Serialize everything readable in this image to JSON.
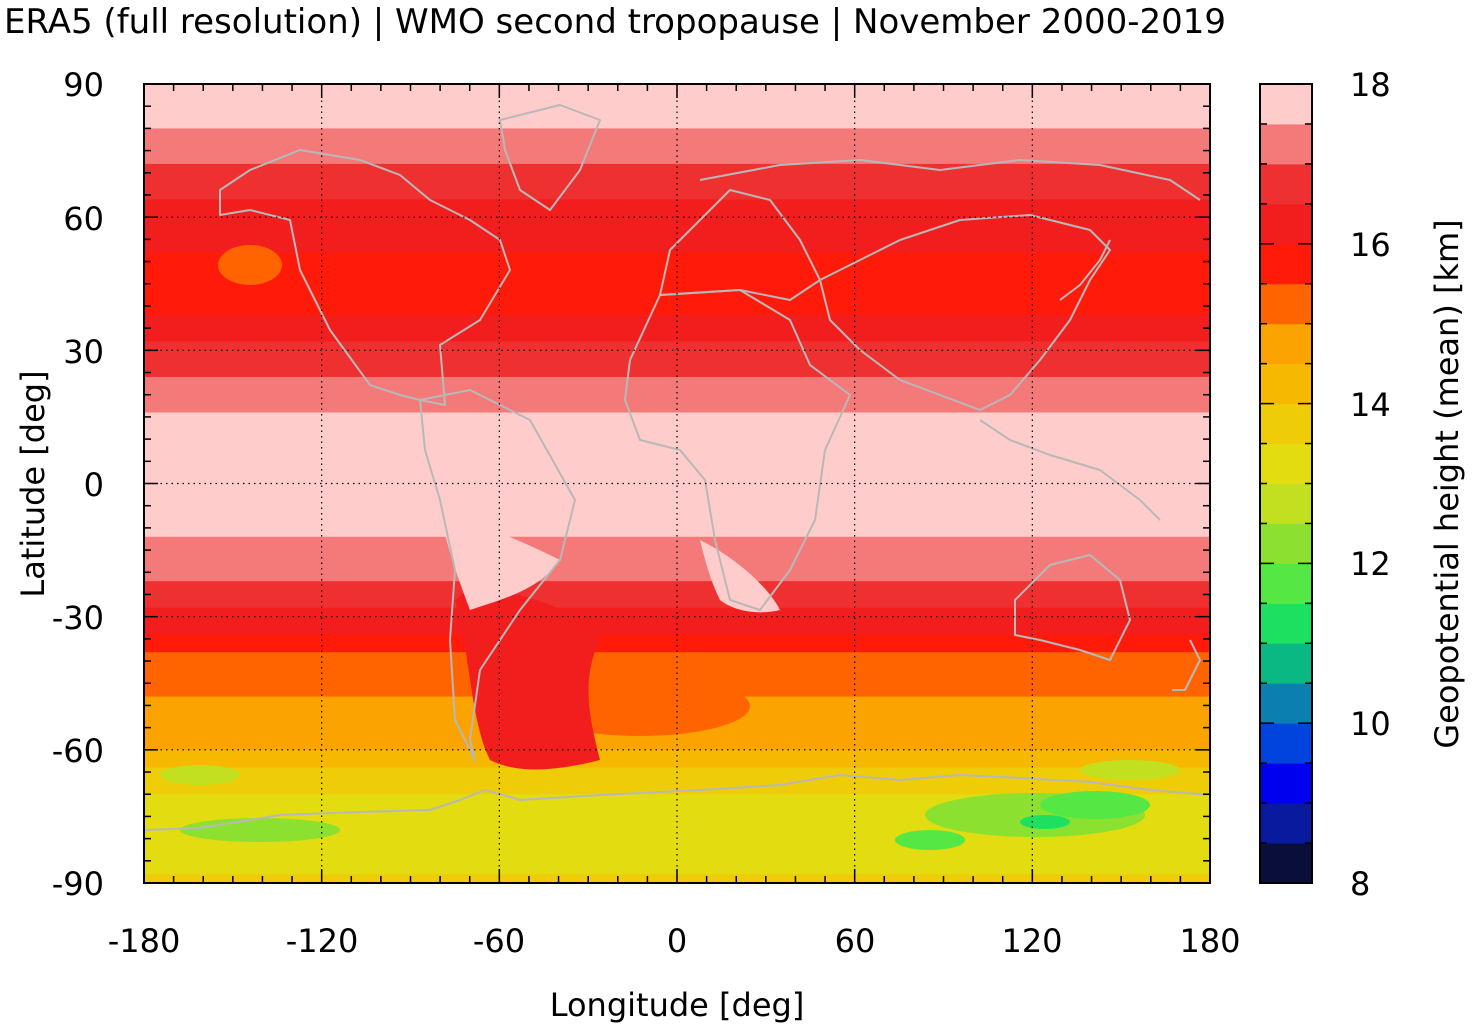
{
  "title": "ERA5 (full resolution) | WMO second tropopause | November 2000-2019",
  "map": {
    "xlabel": "Longitude [deg]",
    "ylabel": "Latitude [deg]",
    "xlim": [
      -180,
      180
    ],
    "ylim": [
      -90,
      90
    ],
    "x_ticks": [
      "-180",
      "-120",
      "-60",
      "0",
      "60",
      "120",
      "180"
    ],
    "y_ticks": [
      "90",
      "60",
      "30",
      "0",
      "-30",
      "-60",
      "-90"
    ],
    "grid": "dotted",
    "coastline_color": "#b8b8b8"
  },
  "colorbar": {
    "label": "Geopotential height (mean) [km]",
    "range": [
      8,
      18
    ],
    "ticks": [
      "18",
      "16",
      "14",
      "12",
      "10",
      "8"
    ],
    "levels_bottom_to_top": [
      "#0a0f3a",
      "#0a1a9e",
      "#0000ee",
      "#0044dd",
      "#0a7fb0",
      "#0ab884",
      "#1ee060",
      "#55e845",
      "#8ce030",
      "#c2e020",
      "#e2dc10",
      "#eecd08",
      "#f6b800",
      "#fba300",
      "#ff6400",
      "#ff1a0a",
      "#f21e1e",
      "#ee3030",
      "#f47a7a",
      "#ffcccc"
    ]
  },
  "chart_data": {
    "type": "heatmap",
    "title": "ERA5 (full resolution) | WMO second tropopause | November 2000-2019",
    "xlabel": "Longitude [deg]",
    "ylabel": "Latitude [deg]",
    "colorbar_label": "Geopotential height (mean) [km]",
    "xlim": [
      -180,
      180
    ],
    "ylim": [
      -90,
      90
    ],
    "zlim": [
      8,
      18
    ],
    "approx_zonal_mean_km": {
      "lat": [
        90,
        80,
        70,
        60,
        50,
        40,
        30,
        20,
        10,
        0,
        -10,
        -20,
        -30,
        -40,
        -50,
        -60,
        -70,
        -80,
        -90
      ],
      "height_km": [
        17.7,
        17.5,
        16.8,
        16.3,
        15.9,
        15.9,
        16.6,
        17.3,
        17.7,
        17.7,
        17.6,
        17.2,
        16.3,
        15.4,
        14.9,
        14.5,
        13.4,
        13.2,
        13.6
      ]
    }
  }
}
